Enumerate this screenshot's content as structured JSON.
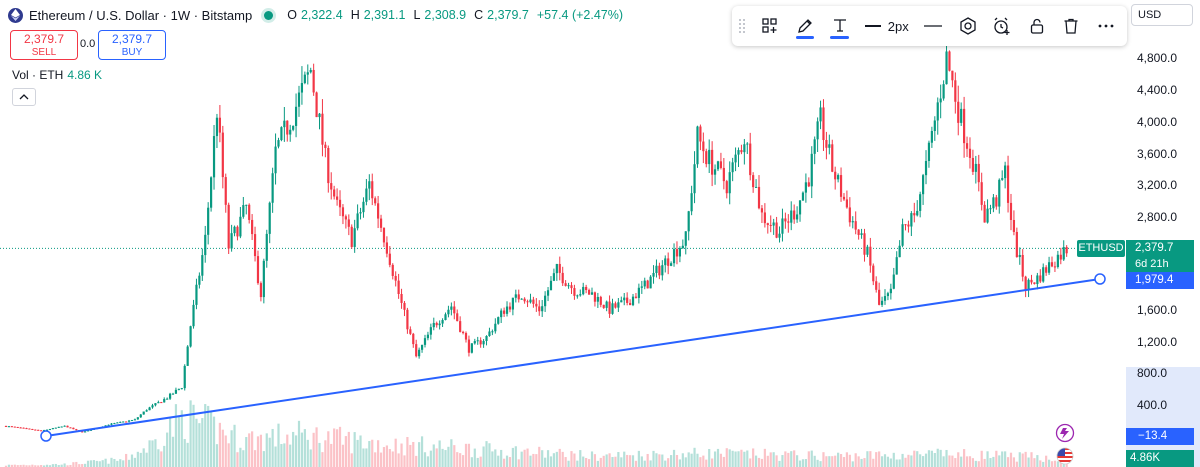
{
  "header": {
    "symbol_title": "Ethereum / U.S. Dollar · 1W · Bitstamp",
    "open_label": "O",
    "open": "2,322.4",
    "high_label": "H",
    "high": "2,391.1",
    "low_label": "L",
    "low": "2,308.9",
    "close_label": "C",
    "close": "2,379.7",
    "change": "+57.4 (+2.47%)"
  },
  "trade": {
    "sell_price": "2,379.7",
    "sell_label": "SELL",
    "spread": "0.0",
    "buy_price": "2,379.7",
    "buy_label": "BUY"
  },
  "volume_legend": {
    "label": "Vol · ETH",
    "value": "4.86 K"
  },
  "toolbar": {
    "line_width_label": "2px"
  },
  "currency_select": "USD",
  "price_scale": {
    "ticks": [
      "4,800.0",
      "4,400.0",
      "4,000.0",
      "3,600.0",
      "3,200.0",
      "2,800.0",
      "1,600.0",
      "1,200.0",
      "800.0",
      "400.0"
    ],
    "tick_values": [
      4800,
      4400,
      4000,
      3600,
      3200,
      2800,
      1600,
      1200,
      800,
      400
    ],
    "last_price": "2,379.7",
    "symbol_tag": "ETHUSD",
    "countdown": "6d 21h",
    "trendline_end_value": "1,979.4",
    "trendline_start_value": "−13.4",
    "volume_value": "4.86K"
  },
  "colors": {
    "up": "#089981",
    "down": "#f23645",
    "trendline": "#2962ff",
    "last_price": "#089981"
  },
  "chart_data": {
    "type": "candlestick",
    "title": "Ethereum / U.S. Dollar · 1W · Bitstamp",
    "ylim": [
      -300,
      4980
    ],
    "last_price": 2379.7,
    "trendline": {
      "start_value": -13.4,
      "end_value": 1979.4
    },
    "anchors": [
      [
        0,
        120
      ],
      [
        12,
        60
      ],
      [
        20,
        120
      ],
      [
        26,
        40
      ],
      [
        35,
        140
      ],
      [
        44,
        200
      ],
      [
        48,
        330
      ],
      [
        55,
        480
      ],
      [
        60,
        620
      ],
      [
        63,
        1400
      ],
      [
        68,
        2500
      ],
      [
        72,
        4150
      ],
      [
        76,
        2400
      ],
      [
        82,
        2900
      ],
      [
        87,
        1800
      ],
      [
        92,
        3600
      ],
      [
        98,
        4100
      ],
      [
        104,
        4650
      ],
      [
        109,
        3500
      ],
      [
        113,
        2900
      ],
      [
        118,
        2500
      ],
      [
        124,
        3200
      ],
      [
        130,
        2400
      ],
      [
        134,
        1800
      ],
      [
        140,
        1000
      ],
      [
        146,
        1400
      ],
      [
        152,
        1650
      ],
      [
        158,
        1100
      ],
      [
        164,
        1250
      ],
      [
        170,
        1600
      ],
      [
        176,
        1800
      ],
      [
        182,
        1600
      ],
      [
        188,
        2100
      ],
      [
        194,
        1850
      ],
      [
        200,
        1800
      ],
      [
        206,
        1600
      ],
      [
        212,
        1700
      ],
      [
        218,
        1900
      ],
      [
        226,
        2250
      ],
      [
        232,
        2500
      ],
      [
        236,
        3800
      ],
      [
        240,
        3500
      ],
      [
        246,
        3200
      ],
      [
        252,
        3800
      ],
      [
        258,
        2800
      ],
      [
        264,
        2600
      ],
      [
        270,
        2900
      ],
      [
        274,
        3300
      ],
      [
        278,
        4000
      ],
      [
        282,
        3400
      ],
      [
        288,
        2800
      ],
      [
        294,
        2300
      ],
      [
        298,
        1650
      ],
      [
        302,
        1800
      ],
      [
        306,
        2600
      ],
      [
        310,
        2800
      ],
      [
        314,
        3400
      ],
      [
        318,
        4200
      ],
      [
        321,
        4800
      ],
      [
        326,
        4000
      ],
      [
        330,
        3500
      ],
      [
        334,
        2800
      ],
      [
        338,
        3000
      ],
      [
        341,
        3350
      ],
      [
        344,
        2500
      ],
      [
        348,
        1900
      ],
      [
        352,
        2000
      ],
      [
        357,
        2200
      ],
      [
        362,
        2380
      ]
    ],
    "volume_anchors": [
      [
        0,
        0.02
      ],
      [
        20,
        0.03
      ],
      [
        40,
        0.08
      ],
      [
        50,
        0.25
      ],
      [
        60,
        0.55
      ],
      [
        70,
        0.45
      ],
      [
        80,
        0.3
      ],
      [
        100,
        0.35
      ],
      [
        130,
        0.25
      ],
      [
        160,
        0.2
      ],
      [
        200,
        0.12
      ],
      [
        240,
        0.15
      ],
      [
        280,
        0.12
      ],
      [
        320,
        0.14
      ],
      [
        362,
        0.1
      ]
    ]
  }
}
